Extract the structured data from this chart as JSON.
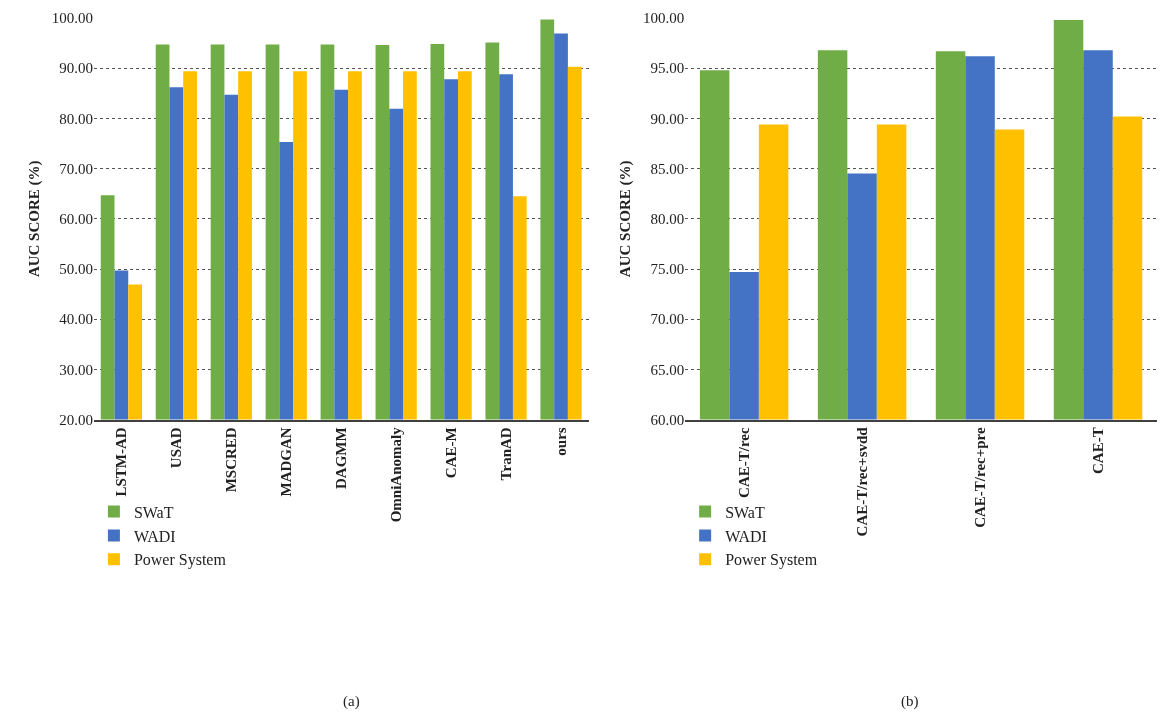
{
  "chart_data": [
    {
      "type": "bar",
      "ylabel": "AUC SCORE (%)",
      "categories": [
        "LSTM-AD",
        "USAD",
        "MSCRED",
        "MADGAN",
        "DAGMM",
        "OmniAnomaly",
        "CAE-M",
        "TranAD",
        "ours"
      ],
      "series": [
        {
          "name": "SWaT",
          "color": "#70ad47",
          "values": [
            64.7,
            94.7,
            94.7,
            94.7,
            94.7,
            94.6,
            94.8,
            95.1,
            99.7
          ]
        },
        {
          "name": "WADI",
          "color": "#4472c4",
          "values": [
            49.7,
            86.2,
            84.7,
            75.3,
            85.7,
            81.9,
            87.8,
            88.8,
            96.9
          ]
        },
        {
          "name": "Power System",
          "color": "#ffc000",
          "values": [
            46.9,
            89.4,
            89.4,
            89.4,
            89.4,
            89.4,
            89.4,
            64.5,
            90.3
          ]
        }
      ],
      "ylim": [
        20,
        100
      ],
      "yticks": [
        {
          "value": 20,
          "label": "20.00"
        },
        {
          "value": 30,
          "label": "30.00"
        },
        {
          "value": 40,
          "label": "40.00"
        },
        {
          "value": 50,
          "label": "50.00"
        },
        {
          "value": 60,
          "label": "60.00"
        },
        {
          "value": 70,
          "label": "70.00"
        },
        {
          "value": 80,
          "label": "80.00"
        },
        {
          "value": 90,
          "label": "90.00"
        },
        {
          "value": 100,
          "label": "100.00"
        }
      ],
      "grid": "y",
      "legend": "bottom left",
      "annotations": [
        "(a)"
      ]
    },
    {
      "type": "bar",
      "ylabel": "AUC SCORE (%)",
      "categories": [
        "CAE-T/rec",
        "CAE-T/rec+svdd",
        "CAE-T/rec+pre",
        "CAE-T"
      ],
      "series": [
        {
          "name": "SWaT",
          "color": "#70ad47",
          "values": [
            94.8,
            96.8,
            96.7,
            99.8
          ]
        },
        {
          "name": "WADI",
          "color": "#4472c4",
          "values": [
            74.7,
            84.5,
            96.2,
            96.8
          ]
        },
        {
          "name": "Power System",
          "color": "#ffc000",
          "values": [
            89.4,
            89.4,
            88.9,
            90.2
          ]
        }
      ],
      "ylim": [
        60,
        100
      ],
      "yticks": [
        {
          "value": 60,
          "label": "60.00"
        },
        {
          "value": 65,
          "label": "65.00"
        },
        {
          "value": 70,
          "label": "70.00"
        },
        {
          "value": 75,
          "label": "75.00"
        },
        {
          "value": 80,
          "label": "80.00"
        },
        {
          "value": 85,
          "label": "85.00"
        },
        {
          "value": 90,
          "label": "90.00"
        },
        {
          "value": 95,
          "label": "95.00"
        },
        {
          "value": 100,
          "label": "100.00"
        }
      ],
      "grid": "y",
      "legend": "bottom left",
      "annotations": [
        "(b)"
      ]
    }
  ]
}
